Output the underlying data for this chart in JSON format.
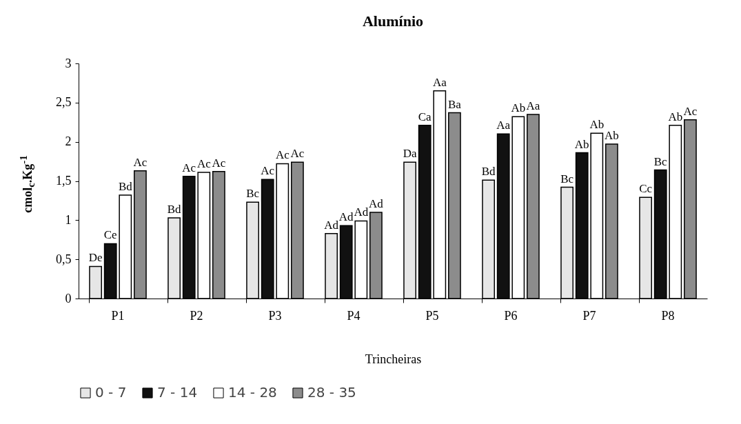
{
  "chart_data": {
    "type": "bar",
    "title": "Alumínio",
    "xlabel": "Trincheiras",
    "ylabel": "cmol$_{c}$.Kg$^{-1}$",
    "categories": [
      "P1",
      "P2",
      "P3",
      "P4",
      "P5",
      "P6",
      "P7",
      "P8"
    ],
    "series": [
      {
        "name": "0 - 7",
        "color": "#e6e6e6",
        "values": [
          0.41,
          1.03,
          1.23,
          0.83,
          1.74,
          1.51,
          1.42,
          1.29
        ],
        "value_labels": [
          "De",
          "Bd",
          "Bc",
          "Ad",
          "Da",
          "Bd",
          "Bc",
          "Cc"
        ]
      },
      {
        "name": "7 - 14",
        "color": "#111111",
        "values": [
          0.7,
          1.56,
          1.52,
          0.93,
          2.21,
          2.1,
          1.86,
          1.64
        ],
        "value_labels": [
          "Ce",
          "Ac",
          "Ac",
          "Ad",
          "Ca",
          "Aa",
          "Ab",
          "Bc"
        ]
      },
      {
        "name": "14 - 28",
        "color": "#ffffff",
        "values": [
          1.32,
          1.61,
          1.72,
          0.99,
          2.65,
          2.32,
          2.11,
          2.21
        ],
        "value_labels": [
          "Bd",
          "Ac",
          "Ac",
          "Ad",
          "Aa",
          "Ab",
          "Ab",
          "Ab"
        ]
      },
      {
        "name": "28 - 35",
        "color": "#8c8c8c",
        "values": [
          1.63,
          1.62,
          1.74,
          1.1,
          2.37,
          2.35,
          1.97,
          2.28
        ],
        "value_labels": [
          "Ac",
          "Ac",
          "Ac",
          "Ad",
          "Ba",
          "Aa",
          "Ab",
          "Ac"
        ]
      }
    ],
    "ylim": [
      0,
      3
    ],
    "yticks": [
      0,
      {
        "value": 0.5,
        "label": "0,5"
      },
      1,
      {
        "value": 1.5,
        "label": "1,5"
      },
      2,
      {
        "value": 2.5,
        "label": "2,5"
      },
      3
    ],
    "grid": false,
    "legend": "bottom"
  }
}
